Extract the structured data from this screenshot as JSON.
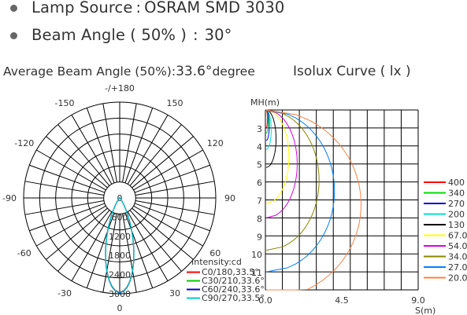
{
  "specs": [
    {
      "label": "Lamp Source",
      "sep": ":",
      "value": "OSRAM SMD 3030"
    },
    {
      "label": "Beam Angle ( 50% )",
      "sep": ":",
      "value": "30°"
    }
  ],
  "polar_title": {
    "prefix": "Average Beam Angle (50%):",
    "value": "33.6°",
    "suffix": "degree"
  },
  "isolux_title": "Isolux Curve ( lx )",
  "chart_data": [
    {
      "type": "polar",
      "angle_labels": [
        {
          "angle": 180,
          "text": "-/+180"
        },
        {
          "angle": -150,
          "text": "-150"
        },
        {
          "angle": 150,
          "text": "150"
        },
        {
          "angle": -120,
          "text": "-120"
        },
        {
          "angle": 120,
          "text": "120"
        },
        {
          "angle": -90,
          "text": "-90"
        },
        {
          "angle": 90,
          "text": "90"
        },
        {
          "angle": -60,
          "text": "-60"
        },
        {
          "angle": 60,
          "text": "60"
        },
        {
          "angle": -30,
          "text": "-30"
        },
        {
          "angle": 30,
          "text": "30"
        },
        {
          "angle": 0,
          "text": "0"
        }
      ],
      "radial_ticks": [
        0,
        600,
        1200,
        1800,
        2400,
        3000
      ],
      "rmax": 3000,
      "unit_label": "Intensity:cd",
      "series": [
        {
          "name": "C0/180,33.5°",
          "color": "#ff0000",
          "peak": 2940,
          "half_angle": 16.75
        },
        {
          "name": "C30/210,33.6°",
          "color": "#00cc00",
          "peak": 2950,
          "half_angle": 16.8
        },
        {
          "name": "C60/240,33.6°",
          "color": "#0000cc",
          "peak": 2960,
          "half_angle": 16.8
        },
        {
          "name": "C90/270,33.5°",
          "color": "#00cccc",
          "peak": 2950,
          "half_angle": 16.75
        }
      ]
    },
    {
      "type": "line",
      "ylabel": "MH(m)",
      "xlabel": "S(m)",
      "x_ticks": [
        "0.0",
        "4.5",
        "9.0"
      ],
      "xlim": [
        0,
        9
      ],
      "y_ticks": [
        "3",
        "4",
        "5",
        "6",
        "7",
        "8",
        "9",
        "10",
        "11"
      ],
      "ylim": [
        2,
        12
      ],
      "series": [
        {
          "name": "400",
          "color": "#ff0000",
          "reach": 3.0,
          "width": 0.07
        },
        {
          "name": "340",
          "color": "#00dd00",
          "reach": 3.3,
          "width": 0.09
        },
        {
          "name": "270",
          "color": "#0000dd",
          "reach": 3.7,
          "width": 0.11
        },
        {
          "name": "200",
          "color": "#00dddd",
          "reach": 4.2,
          "width": 0.14
        },
        {
          "name": "130",
          "color": "#000000",
          "reach": 5.2,
          "width": 0.19
        },
        {
          "name": "67.0",
          "color": "#ffff00",
          "reach": 7.2,
          "width": 0.27
        },
        {
          "name": "54.0",
          "color": "#dd00dd",
          "reach": 8.0,
          "width": 0.32
        },
        {
          "name": "34.0",
          "color": "#888800",
          "reach": 9.8,
          "width": 0.42
        },
        {
          "name": "27.0",
          "color": "#0080ff",
          "reach": 11.0,
          "width": 0.47
        },
        {
          "name": "20.0",
          "color": "#ff8040",
          "reach": 12.5,
          "width": 0.56
        }
      ]
    }
  ]
}
